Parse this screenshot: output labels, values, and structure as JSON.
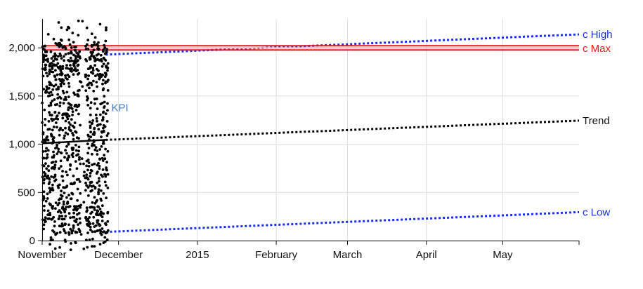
{
  "chart_data": {
    "type": "scatter",
    "title": "",
    "xlabel": "",
    "ylabel": "",
    "x_range": [
      "2014-11-01",
      "2015-05-31"
    ],
    "ylim": [
      0,
      2300
    ],
    "y_ticks": [
      0,
      500,
      1000,
      1500,
      2000
    ],
    "y_tick_labels": [
      "0",
      "500",
      "1,000",
      "1,500",
      "2,000"
    ],
    "x_ticks": [
      "2014-11-01",
      "2014-12-01",
      "2015-01-01",
      "2015-02-01",
      "2015-03-01",
      "2015-04-01",
      "2015-05-01"
    ],
    "x_tick_labels": [
      "November",
      "December",
      "2015",
      "February",
      "March",
      "April",
      "May"
    ],
    "grid": true,
    "point_color": "#000000",
    "series": [
      {
        "kind": "scatter",
        "label": "KPI",
        "color": "#4a7bb7",
        "x_start": "2014-11-01",
        "x_end": "2014-11-26",
        "points_per_day": 40,
        "y_min": -100,
        "y_max": 2290,
        "note_gap": [
          "2014-11-16",
          "2014-11-18"
        ]
      },
      {
        "kind": "line",
        "label": "Trend",
        "color": "#000000",
        "solid": [
          [
            "2014-11-01",
            1010
          ],
          [
            "2014-11-26",
            1045
          ]
        ],
        "projected": [
          [
            "2014-11-26",
            1045
          ],
          [
            "2015-05-31",
            1245
          ]
        ]
      },
      {
        "kind": "line",
        "label": "c High",
        "color": "#1a2fe0",
        "projected": [
          [
            "2014-11-26",
            1930
          ],
          [
            "2015-05-31",
            2140
          ]
        ]
      },
      {
        "kind": "line",
        "label": "c Low",
        "color": "#1a2fe0",
        "projected": [
          [
            "2014-11-26",
            90
          ],
          [
            "2015-05-31",
            295
          ]
        ]
      },
      {
        "kind": "hline",
        "label": "c Max",
        "color": "#e8141e",
        "value": 2000,
        "from": "2014-11-01",
        "to": "2015-05-31"
      }
    ]
  }
}
